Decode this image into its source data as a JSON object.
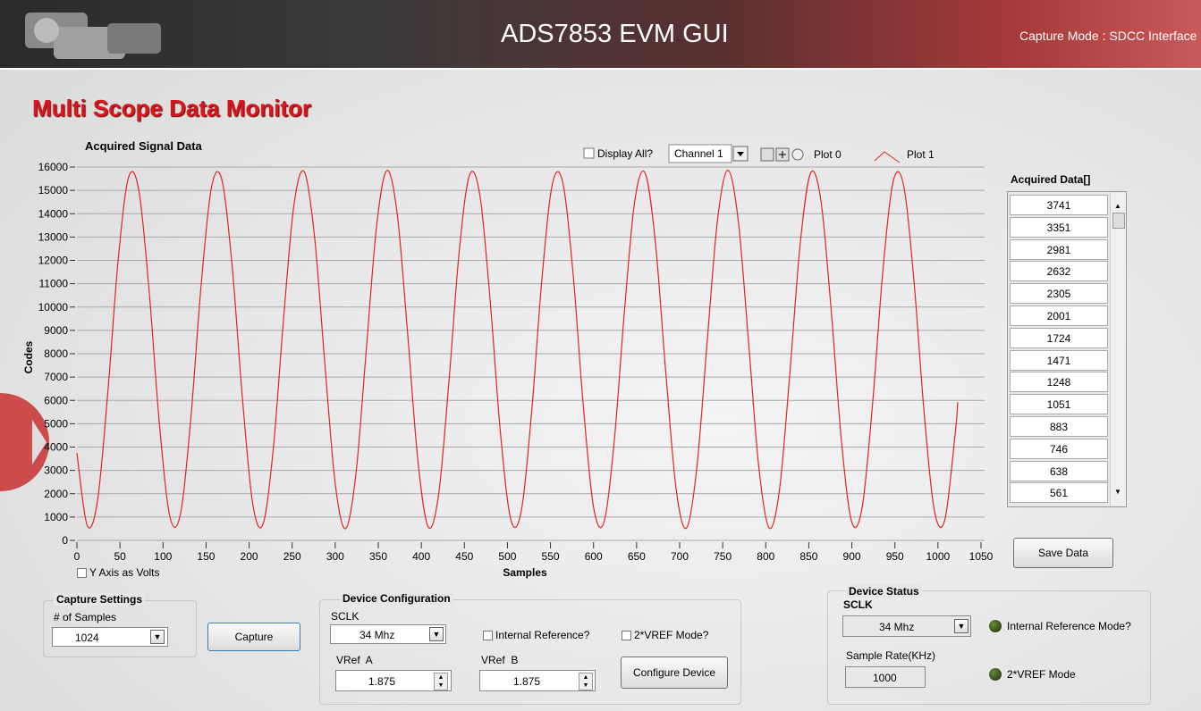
{
  "header": {
    "title": "ADS7853 EVM GUI",
    "mode": "Capture Mode : SDCC Interface"
  },
  "page_title": "Multi Scope Data Monitor",
  "plot_controls": {
    "display_all": "Display All?",
    "channel": "Channel 1",
    "plot0": "Plot 0"
  },
  "chart_data": {
    "type": "line",
    "title": "Acquired Signal Data",
    "x_label": "Samples",
    "y_label": "Codes",
    "x": [
      0,
      12,
      24,
      36,
      48,
      60,
      72,
      84,
      96,
      108,
      120,
      132,
      144,
      156,
      168,
      180,
      192,
      204,
      216,
      228,
      240,
      252,
      264,
      276,
      288,
      300,
      312,
      324,
      336,
      348,
      360,
      372,
      384,
      396,
      408,
      420,
      432,
      444,
      456,
      468,
      480,
      492,
      504,
      516,
      528,
      540,
      552,
      564,
      576,
      588,
      600,
      612,
      624,
      636,
      648,
      660,
      672,
      684,
      696,
      708,
      720,
      732,
      744,
      756,
      768,
      780,
      792,
      804,
      816,
      828,
      840,
      852,
      864,
      876,
      888,
      900,
      912,
      924,
      936,
      948,
      960,
      972,
      984,
      996,
      1008,
      1020,
      1023
    ],
    "series": [
      {
        "name": "Plot 1",
        "color": "#e8231c",
        "values": [
          3741,
          638,
          1723,
          6390,
          12048,
          15561,
          14980,
          10628,
          4917,
          1016,
          1089,
          5096,
          10812,
          15069,
          15505,
          11877,
          6200,
          1620,
          679,
          3898,
          9493,
          14359,
          15798,
          13011,
          7546,
          2431,
          505,
          2836,
          8132,
          13451,
          15850,
          13992,
          8910,
          3423,
          575,
          1945,
          6772,
          12382,
          15660,
          14789,
          10253,
          4567,
          884,
          1250,
          5458,
          11177,
          15233,
          15378,
          11530,
          5823,
          1425,
          773,
          4229,
          9877,
          14584,
          15738,
          12700,
          7155,
          2179,
          531,
          3124,
          8524,
          13732,
          15860,
          13728,
          8519,
          3120,
          530,
          2183,
          7160,
          12704,
          15739,
          14581,
          9873,
          4226,
          772,
          1427,
          5828,
          11534,
          15379,
          15232,
          11172,
          5454,
          1247,
          886,
          4570,
          5922
        ]
      }
    ],
    "xlim": [
      0,
      1050
    ],
    "ylim": [
      0,
      16000
    ],
    "xticks": [
      0,
      50,
      100,
      150,
      200,
      250,
      300,
      350,
      400,
      450,
      500,
      550,
      600,
      650,
      700,
      750,
      800,
      850,
      900,
      950,
      1000,
      1050
    ],
    "yticks": [
      0,
      1000,
      2000,
      3000,
      4000,
      5000,
      6000,
      7000,
      8000,
      9000,
      10000,
      11000,
      12000,
      13000,
      14000,
      15000,
      16000
    ],
    "grid": true
  },
  "y_axis_volts": "Y Axis as Volts",
  "acquired_data": {
    "label": "Acquired Data[]",
    "values": [
      3741,
      3351,
      2981,
      2632,
      2305,
      2001,
      1724,
      1471,
      1248,
      1051,
      883,
      746,
      638,
      561
    ]
  },
  "save_button": "Save Data",
  "capture_settings": {
    "title": "Capture Settings",
    "samples_label": "# of Samples",
    "samples": 1024,
    "button": "Capture"
  },
  "device_configuration": {
    "title": "Device Configuration",
    "sclk_label": "SCLK",
    "sclk": "34 Mhz",
    "internal_ref": "Internal Reference?",
    "vref2": "2*VREF Mode?",
    "vref_a_label": "VRef  A",
    "vref_a": 1.875,
    "vref_b_label": "VRef  B",
    "vref_b": 1.875,
    "button": "Configure Device"
  },
  "device_status": {
    "title": "Device Status",
    "sclk_label": "SCLK",
    "sclk": "34 Mhz",
    "internal_ref": "Internal Reference Mode?",
    "rate_label": "Sample Rate(KHz)",
    "rate": 1000,
    "vref2": "2*VREF Mode"
  }
}
